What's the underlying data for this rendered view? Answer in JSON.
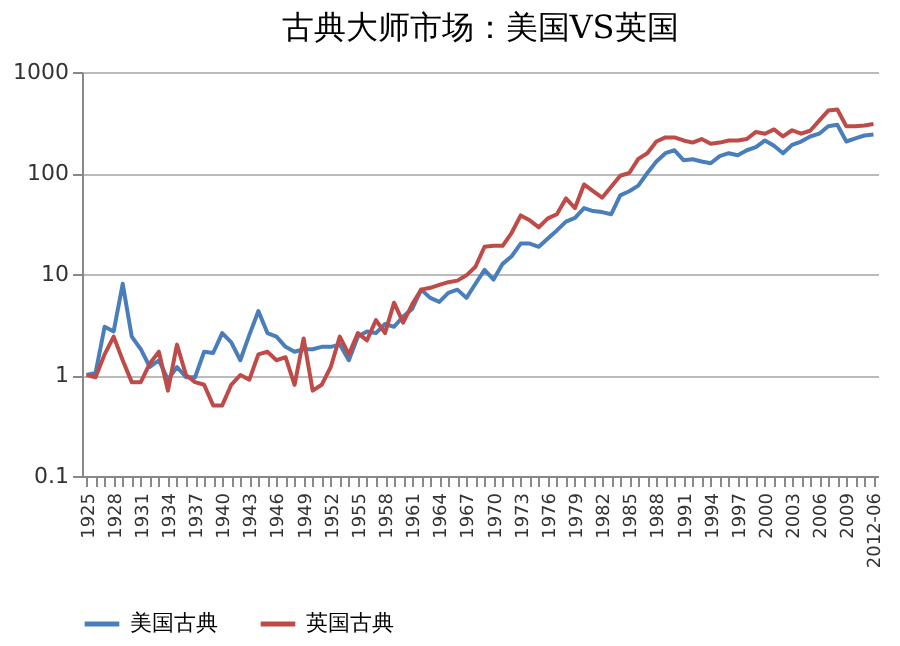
{
  "chart_data": {
    "type": "line",
    "title": "古典大师市场：美国VS英国",
    "categories": [
      "1925",
      null,
      null,
      "1928",
      null,
      null,
      "1931",
      null,
      null,
      "1934",
      null,
      null,
      "1937",
      null,
      null,
      "1940",
      null,
      null,
      "1943",
      null,
      null,
      "1946",
      null,
      null,
      "1949",
      null,
      null,
      "1952",
      null,
      null,
      "1955",
      null,
      null,
      "1958",
      null,
      null,
      "1961",
      null,
      null,
      "1964",
      null,
      null,
      "1967",
      null,
      null,
      "1970",
      null,
      null,
      "1973",
      null,
      null,
      "1976",
      null,
      null,
      "1979",
      null,
      null,
      "1982",
      null,
      null,
      "1985",
      null,
      null,
      "1988",
      null,
      null,
      "1991",
      null,
      null,
      "1994",
      null,
      null,
      "1997",
      null,
      null,
      "2000",
      null,
      null,
      "2003",
      null,
      null,
      "2006",
      null,
      null,
      "2009",
      null,
      null,
      "2012-06"
    ],
    "series": [
      {
        "name": "美国古典",
        "color": "#4a7ebb",
        "values": [
          1.0,
          1.05,
          3.0,
          2.7,
          8,
          2.4,
          1.8,
          1.2,
          1.4,
          0.9,
          1.2,
          0.95,
          0.95,
          1.7,
          1.65,
          2.6,
          2.1,
          1.4,
          2.5,
          4.3,
          2.6,
          2.4,
          1.9,
          1.7,
          1.8,
          1.8,
          1.9,
          1.9,
          2.0,
          1.4,
          2.4,
          2.7,
          2.6,
          3.2,
          3.0,
          3.8,
          4.5,
          7.0,
          5.8,
          5.3,
          6.5,
          7.0,
          5.8,
          8.0,
          11,
          8.8,
          12.6,
          15,
          20,
          20,
          18.6,
          22.5,
          27,
          33,
          36,
          45,
          42,
          41,
          39,
          60,
          66,
          75,
          100,
          130,
          157,
          168,
          134,
          137,
          130,
          125,
          147,
          157,
          150,
          168,
          180,
          210,
          186,
          157,
          190,
          205,
          230,
          245,
          290,
          300,
          205,
          220,
          235,
          240
        ]
      },
      {
        "name": "英国古典",
        "color": "#be4b48",
        "values": [
          1.0,
          0.95,
          1.6,
          2.4,
          1.4,
          0.85,
          0.85,
          1.3,
          1.7,
          0.7,
          2.0,
          1.0,
          0.85,
          0.8,
          0.5,
          0.5,
          0.8,
          1.0,
          0.9,
          1.6,
          1.7,
          1.4,
          1.5,
          0.8,
          2.3,
          0.7,
          0.8,
          1.2,
          2.4,
          1.6,
          2.6,
          2.2,
          3.5,
          2.6,
          5.2,
          3.3,
          5.0,
          7.0,
          7.3,
          7.8,
          8.3,
          8.6,
          9.7,
          11.8,
          18.6,
          19,
          19,
          25.6,
          38,
          34,
          29,
          35.5,
          39,
          56,
          45,
          77,
          66,
          57,
          73,
          94,
          100,
          138,
          157,
          205,
          225,
          225,
          210,
          200,
          217,
          195,
          200,
          210,
          210,
          217,
          255,
          245,
          270,
          230,
          265,
          245,
          262,
          330,
          415,
          425,
          290,
          290,
          295,
          305
        ]
      }
    ],
    "log": "y",
    "ylim": [
      0.1,
      1000
    ],
    "yticks": [
      0.1,
      1,
      10,
      100,
      1000
    ],
    "grid": "y",
    "legend": "bottom",
    "marker": "none",
    "line_style": "solid"
  }
}
